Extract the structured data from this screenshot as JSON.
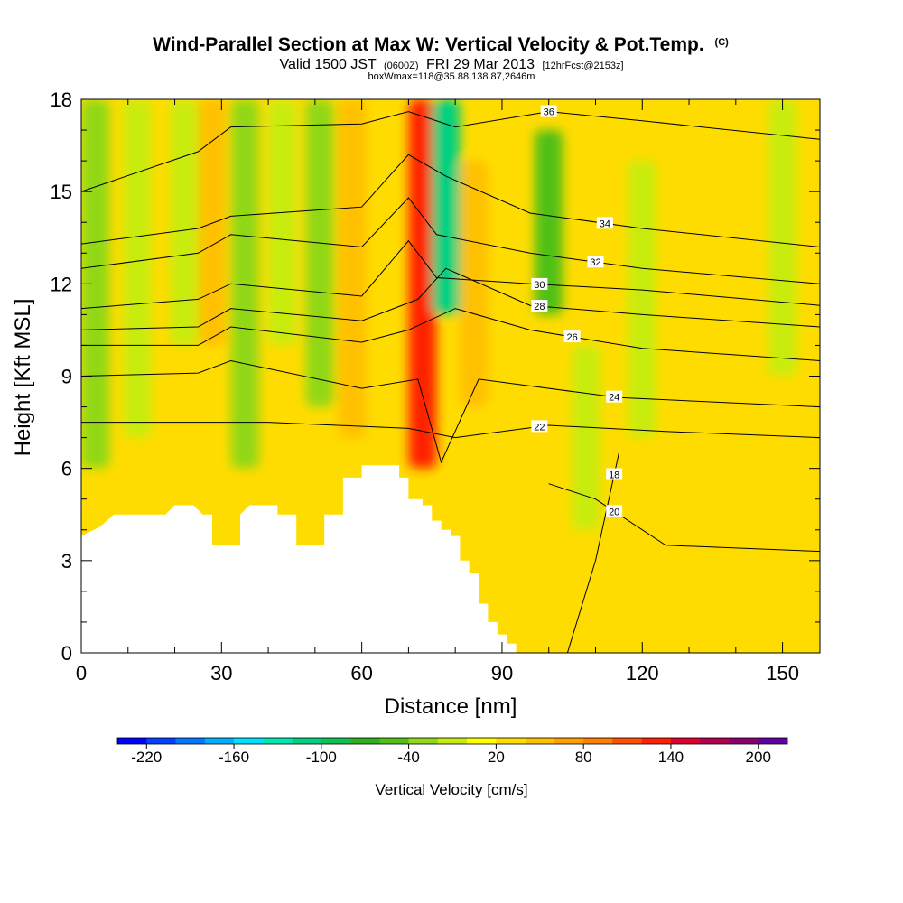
{
  "chart_data": {
    "type": "heatmap",
    "title": "Wind-Parallel Section at Max W: Vertical Velocity & Pot.Temp.",
    "title_mark": "(C)",
    "subtitle_main_a": "Valid 1500 JST",
    "subtitle_small_a": "(0600Z)",
    "subtitle_main_b": "FRI 29 Mar 2013",
    "subtitle_small_b": "[12hrFcst@2153z]",
    "subtitle_2": "boxWmax=118@35.88,138.87,2646m",
    "xlabel": "Distance [nm]",
    "ylabel": "Height [Kft MSL]",
    "xlim": [
      0,
      158
    ],
    "ylim": [
      0,
      18
    ],
    "xticks": [
      0,
      30,
      60,
      90,
      120,
      150
    ],
    "yticks": [
      0,
      3,
      6,
      9,
      12,
      15,
      18
    ],
    "x_minor_step": 10,
    "y_minor_step": 1,
    "background_value": 20,
    "colorbar": {
      "title": "Vertical Velocity [cm/s]",
      "min": -240,
      "max": 220,
      "step": 20,
      "tick_values": [
        -220,
        -160,
        -100,
        -40,
        20,
        80,
        140,
        200
      ],
      "tick_labels": [
        "-220",
        "-160",
        "-100",
        "-40",
        "20",
        "80",
        "140",
        "200"
      ],
      "colors": [
        "#0000ff",
        "#0040ff",
        "#0078ff",
        "#00b0ff",
        "#00e0ff",
        "#00e8b0",
        "#00d080",
        "#10c050",
        "#30b020",
        "#50c018",
        "#90d818",
        "#c8ec10",
        "#ffff00",
        "#ffdc00",
        "#ffc000",
        "#ffa000",
        "#ff8000",
        "#ff5000",
        "#ff2000",
        "#e00030",
        "#b00050",
        "#880070",
        "#6000a0"
      ]
    },
    "vertical_velocity_features": [
      {
        "x": 3,
        "y_range": [
          6,
          18
        ],
        "value": -40
      },
      {
        "x": 12,
        "y_range": [
          7,
          18
        ],
        "value": -20
      },
      {
        "x": 22,
        "y_range": [
          10,
          18
        ],
        "value": -20
      },
      {
        "x": 28,
        "y_range": [
          10,
          18
        ],
        "value": 40
      },
      {
        "x": 35,
        "y_range": [
          6,
          18
        ],
        "value": -40
      },
      {
        "x": 43,
        "y_range": [
          10,
          18
        ],
        "value": -20
      },
      {
        "x": 51,
        "y_range": [
          8,
          18
        ],
        "value": -40
      },
      {
        "x": 58,
        "y_range": [
          7,
          18
        ],
        "value": 40
      },
      {
        "x": 73,
        "y_range": [
          6,
          18
        ],
        "value": 120
      },
      {
        "x": 78,
        "y_range": [
          11,
          18
        ],
        "value": -110
      },
      {
        "x": 84,
        "y_range": [
          8,
          16
        ],
        "value": 40
      },
      {
        "x": 100,
        "y_range": [
          11,
          17
        ],
        "value": -60
      },
      {
        "x": 108,
        "y_range": [
          4,
          10
        ],
        "value": -20
      },
      {
        "x": 120,
        "y_range": [
          7,
          16
        ],
        "value": -20
      },
      {
        "x": 150,
        "y_range": [
          9,
          18
        ],
        "value": -20
      }
    ],
    "potential_temperature_contours": [
      {
        "value": 18,
        "points": [
          [
            104,
            0
          ],
          [
            110,
            3
          ],
          [
            115,
            6.5
          ]
        ],
        "label_x": 114
      },
      {
        "value": 20,
        "points": [
          [
            100,
            5.5
          ],
          [
            110,
            5
          ],
          [
            125,
            3.5
          ],
          [
            158,
            3.3
          ]
        ],
        "label_x": 114
      },
      {
        "value": 22,
        "points": [
          [
            0,
            7.5
          ],
          [
            40,
            7.5
          ],
          [
            70,
            7.3
          ],
          [
            80,
            7.0
          ],
          [
            100,
            7.4
          ],
          [
            125,
            7.2
          ],
          [
            158,
            7.0
          ]
        ],
        "label_x": 98
      },
      {
        "value": 24,
        "points": [
          [
            0,
            9.0
          ],
          [
            25,
            9.1
          ],
          [
            32,
            9.5
          ],
          [
            60,
            8.6
          ],
          [
            72,
            8.9
          ],
          [
            77,
            6.2
          ],
          [
            85,
            8.9
          ],
          [
            115,
            8.3
          ],
          [
            158,
            8.0
          ]
        ],
        "label_x": 114
      },
      {
        "value": 26,
        "points": [
          [
            0,
            10.0
          ],
          [
            25,
            10.0
          ],
          [
            32,
            10.6
          ],
          [
            60,
            10.1
          ],
          [
            70,
            10.5
          ],
          [
            80,
            11.2
          ],
          [
            96,
            10.5
          ],
          [
            120,
            9.9
          ],
          [
            158,
            9.5
          ]
        ],
        "label_x": 105
      },
      {
        "value": 28,
        "points": [
          [
            0,
            10.5
          ],
          [
            25,
            10.6
          ],
          [
            32,
            11.2
          ],
          [
            60,
            10.8
          ],
          [
            72,
            11.5
          ],
          [
            78,
            12.5
          ],
          [
            96,
            11.3
          ],
          [
            120,
            11.0
          ],
          [
            158,
            10.6
          ]
        ],
        "label_x": 98
      },
      {
        "value": 30,
        "points": [
          [
            0,
            11.2
          ],
          [
            25,
            11.5
          ],
          [
            32,
            12.0
          ],
          [
            60,
            11.6
          ],
          [
            70,
            13.4
          ],
          [
            76,
            12.2
          ],
          [
            96,
            12.0
          ],
          [
            120,
            11.8
          ],
          [
            158,
            11.3
          ]
        ],
        "label_x": 98
      },
      {
        "value": 32,
        "points": [
          [
            0,
            12.5
          ],
          [
            25,
            13.0
          ],
          [
            32,
            13.6
          ],
          [
            60,
            13.2
          ],
          [
            70,
            14.8
          ],
          [
            76,
            13.6
          ],
          [
            96,
            13.0
          ],
          [
            120,
            12.5
          ],
          [
            158,
            12.0
          ]
        ],
        "label_x": 110
      },
      {
        "value": 34,
        "points": [
          [
            0,
            13.3
          ],
          [
            25,
            13.8
          ],
          [
            32,
            14.2
          ],
          [
            60,
            14.5
          ],
          [
            70,
            16.2
          ],
          [
            78,
            15.5
          ],
          [
            96,
            14.3
          ],
          [
            120,
            13.8
          ],
          [
            158,
            13.2
          ]
        ],
        "label_x": 112
      },
      {
        "value": 36,
        "points": [
          [
            0,
            15.0
          ],
          [
            25,
            16.3
          ],
          [
            32,
            17.1
          ],
          [
            60,
            17.2
          ],
          [
            70,
            17.6
          ],
          [
            80,
            17.1
          ],
          [
            100,
            17.6
          ],
          [
            120,
            17.3
          ],
          [
            158,
            16.7
          ]
        ],
        "label_x": 100
      }
    ],
    "terrain_profile": [
      [
        0,
        3.8
      ],
      [
        4,
        4.1
      ],
      [
        7,
        4.5
      ],
      [
        18,
        4.5
      ],
      [
        20,
        4.8
      ],
      [
        24,
        4.8
      ],
      [
        26,
        4.5
      ],
      [
        28,
        4.5
      ],
      [
        28,
        3.5
      ],
      [
        34,
        3.5
      ],
      [
        34,
        4.5
      ],
      [
        36,
        4.8
      ],
      [
        42,
        4.8
      ],
      [
        42,
        4.5
      ],
      [
        46,
        4.5
      ],
      [
        46,
        3.5
      ],
      [
        52,
        3.5
      ],
      [
        52,
        4.5
      ],
      [
        56,
        4.5
      ],
      [
        56,
        5.7
      ],
      [
        60,
        5.7
      ],
      [
        60,
        6.1
      ],
      [
        68,
        6.1
      ],
      [
        68,
        5.7
      ],
      [
        70,
        5.7
      ],
      [
        70,
        5.0
      ],
      [
        73,
        5.0
      ],
      [
        73,
        4.8
      ],
      [
        75,
        4.8
      ],
      [
        75,
        4.3
      ],
      [
        77,
        4.3
      ],
      [
        77,
        4.0
      ],
      [
        79,
        4.0
      ],
      [
        79,
        3.8
      ],
      [
        81,
        3.8
      ],
      [
        81,
        3.0
      ],
      [
        83,
        3.0
      ],
      [
        83,
        2.6
      ],
      [
        85,
        2.6
      ],
      [
        85,
        1.6
      ],
      [
        87,
        1.6
      ],
      [
        87,
        1.0
      ],
      [
        89,
        1.0
      ],
      [
        89,
        0.6
      ],
      [
        91,
        0.6
      ],
      [
        91,
        0.3
      ],
      [
        93,
        0.3
      ],
      [
        93,
        0.0
      ]
    ]
  }
}
